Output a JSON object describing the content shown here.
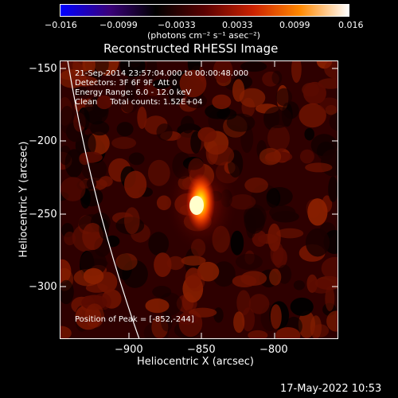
{
  "colorbar": {
    "tick_labels": [
      "−0.016",
      "−0.0099",
      "−0.0033",
      "0.0033",
      "0.0099",
      "0.016"
    ],
    "units": "(photons cm⁻² s⁻¹ asec⁻²)",
    "colors": [
      "#0000ff",
      "#3a007a",
      "#000000",
      "#5a0000",
      "#cc2200",
      "#ff8800",
      "#ffffff"
    ]
  },
  "title": "Reconstructed RHESSI Image",
  "info": {
    "line1": "21-Sep-2014 23:57:04.000 to 00:00:48.000",
    "line2": "Detectors: 3F 6F 9F, Att 0",
    "line3": "Energy Range: 6.0 - 12.0 keV",
    "line4": "Clean     Total counts: 1.52E+04"
  },
  "peak_label": "Position of Peak = [-852,-244]",
  "axes": {
    "xlabel": "Heliocentric X (arcsec)",
    "ylabel": "Heliocentric Y (arcsec)",
    "x_ticks": [
      "−900",
      "−850",
      "−800"
    ],
    "y_ticks": [
      "−150",
      "−200",
      "−250",
      "−300"
    ]
  },
  "timestamp": "17-May-2022 10:53"
}
